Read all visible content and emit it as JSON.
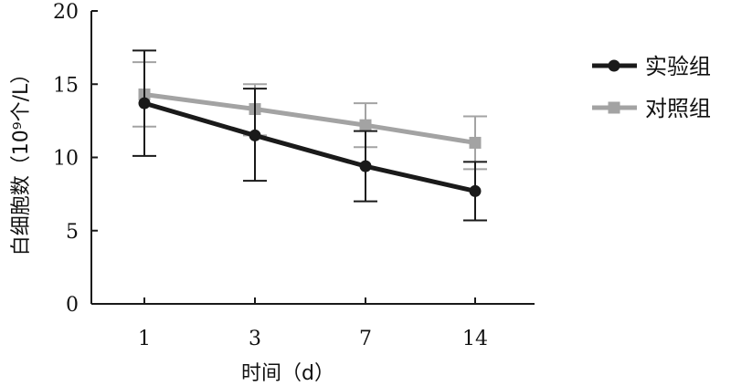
{
  "chart_data": {
    "type": "line",
    "title": "",
    "xlabel": "时间（d）",
    "ylabel": "白细胞数（10⁹个/L）",
    "categories": [
      "1",
      "3",
      "7",
      "14"
    ],
    "ylim": [
      0,
      20
    ],
    "yticks": [
      "0",
      "5",
      "10",
      "15",
      "20"
    ],
    "grid": false,
    "legend_position": "right",
    "series": [
      {
        "name": "实验组",
        "color": "#1a1a1a",
        "marker": "circle",
        "values": [
          13.7,
          11.5,
          9.4,
          7.7
        ],
        "error_low": [
          10.1,
          8.4,
          7.0,
          5.7
        ],
        "error_high": [
          17.3,
          14.7,
          11.8,
          9.7
        ]
      },
      {
        "name": "对照组",
        "color": "#a3a3a3",
        "marker": "square",
        "values": [
          14.3,
          13.3,
          12.2,
          11.0
        ],
        "error_low": [
          12.1,
          11.5,
          10.7,
          9.2
        ],
        "error_high": [
          16.5,
          15.0,
          13.7,
          12.8
        ]
      }
    ]
  }
}
